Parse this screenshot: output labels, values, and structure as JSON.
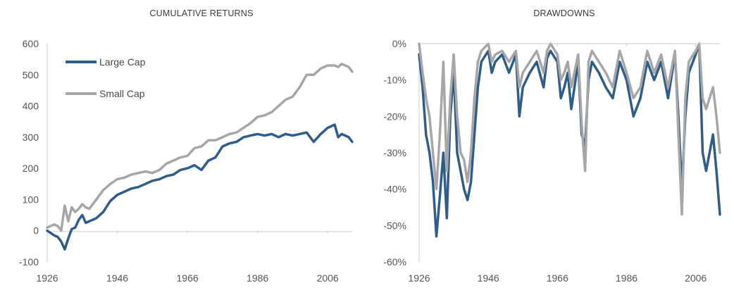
{
  "chart_data": [
    {
      "type": "line",
      "title": "CUMULATIVE RETURNS",
      "xlabel": "",
      "ylabel": "",
      "xlim": [
        1926,
        2013
      ],
      "ylim": [
        -100,
        600
      ],
      "y_ticks": [
        -100,
        0,
        100,
        200,
        300,
        400,
        500,
        600
      ],
      "y_tick_labels": [
        "-100",
        "0",
        "100",
        "200",
        "300",
        "400",
        "500",
        "600"
      ],
      "x_ticks": [
        1926,
        1946,
        1966,
        1986,
        2006
      ],
      "x_tick_labels": [
        "1926",
        "1946",
        "1966",
        "1986",
        "2006"
      ],
      "grid": false,
      "legend_position": "top-left",
      "series": [
        {
          "name": "Large Cap",
          "color": "#2e5d8c",
          "x": [
            1926,
            1928,
            1929,
            1930,
            1931,
            1932,
            1933,
            1934,
            1935,
            1936,
            1937,
            1938,
            1940,
            1942,
            1944,
            1946,
            1948,
            1950,
            1952,
            1954,
            1956,
            1958,
            1960,
            1962,
            1964,
            1966,
            1968,
            1970,
            1972,
            1974,
            1976,
            1978,
            1980,
            1982,
            1984,
            1986,
            1988,
            1990,
            1992,
            1994,
            1996,
            1998,
            2000,
            2002,
            2004,
            2006,
            2008,
            2009,
            2010,
            2012,
            2013
          ],
          "values": [
            0,
            -15,
            -20,
            -35,
            -60,
            -25,
            5,
            10,
            35,
            50,
            25,
            30,
            40,
            60,
            95,
            115,
            125,
            135,
            140,
            150,
            160,
            165,
            175,
            180,
            195,
            200,
            210,
            195,
            225,
            235,
            270,
            280,
            285,
            300,
            305,
            310,
            305,
            310,
            300,
            310,
            305,
            310,
            315,
            285,
            310,
            330,
            340,
            300,
            310,
            300,
            285
          ]
        },
        {
          "name": "Small Cap",
          "color": "#a6a6a6",
          "x": [
            1926,
            1928,
            1929,
            1930,
            1931,
            1932,
            1933,
            1934,
            1935,
            1936,
            1937,
            1938,
            1940,
            1942,
            1944,
            1946,
            1948,
            1950,
            1952,
            1954,
            1956,
            1958,
            1960,
            1962,
            1964,
            1966,
            1968,
            1970,
            1972,
            1974,
            1976,
            1978,
            1980,
            1982,
            1984,
            1986,
            1988,
            1990,
            1992,
            1994,
            1996,
            1998,
            2000,
            2002,
            2004,
            2006,
            2008,
            2009,
            2010,
            2012,
            2013
          ],
          "values": [
            10,
            20,
            15,
            0,
            80,
            30,
            75,
            60,
            70,
            85,
            75,
            70,
            100,
            130,
            150,
            165,
            170,
            180,
            185,
            190,
            185,
            195,
            215,
            225,
            235,
            240,
            265,
            270,
            290,
            290,
            300,
            310,
            315,
            330,
            345,
            365,
            370,
            380,
            400,
            420,
            430,
            460,
            500,
            500,
            520,
            530,
            530,
            525,
            535,
            525,
            510
          ]
        }
      ]
    },
    {
      "type": "line",
      "title": "DRAWDOWNS",
      "xlabel": "",
      "ylabel": "",
      "xlim": [
        1926,
        2013
      ],
      "ylim": [
        -60,
        0
      ],
      "y_ticks": [
        0,
        -10,
        -20,
        -30,
        -40,
        -50,
        -60
      ],
      "y_tick_labels": [
        "0%",
        "-10%",
        "-20%",
        "-30%",
        "-40%",
        "-50%",
        "-60%"
      ],
      "x_ticks": [
        1926,
        1946,
        1966,
        1986,
        2006
      ],
      "x_tick_labels": [
        "1926",
        "1946",
        "1966",
        "1986",
        "2006"
      ],
      "grid": false,
      "series": [
        {
          "name": "Large Cap",
          "color": "#2e5d8c",
          "x": [
            1926,
            1927,
            1928,
            1929,
            1930,
            1931,
            1932,
            1933,
            1934,
            1935,
            1936,
            1937,
            1938,
            1939,
            1940,
            1941,
            1942,
            1943,
            1944,
            1946,
            1947,
            1948,
            1950,
            1952,
            1954,
            1955,
            1956,
            1958,
            1960,
            1962,
            1963,
            1964,
            1966,
            1967,
            1968,
            1969,
            1970,
            1972,
            1973,
            1974,
            1975,
            1976,
            1978,
            1980,
            1982,
            1984,
            1986,
            1988,
            1990,
            1992,
            1994,
            1996,
            1998,
            2000,
            2001,
            2002,
            2003,
            2004,
            2006,
            2007,
            2008,
            2009,
            2010,
            2011,
            2012,
            2013
          ],
          "values": [
            -3,
            -12,
            -25,
            -30,
            -38,
            -53,
            -42,
            -30,
            -48,
            -20,
            -8,
            -30,
            -35,
            -40,
            -43,
            -38,
            -25,
            -12,
            -5,
            -2,
            -8,
            -5,
            -3,
            -8,
            -3,
            -20,
            -12,
            -8,
            -5,
            -12,
            -4,
            -2,
            -5,
            -15,
            -12,
            -8,
            -18,
            -5,
            -25,
            -28,
            -10,
            -5,
            -8,
            -12,
            -15,
            -5,
            -10,
            -20,
            -15,
            -5,
            -10,
            -5,
            -15,
            -3,
            -20,
            -40,
            -20,
            -8,
            -3,
            0,
            -30,
            -35,
            -30,
            -25,
            -35,
            -47
          ]
        },
        {
          "name": "Small Cap",
          "color": "#a6a6a6",
          "x": [
            1926,
            1927,
            1928,
            1929,
            1930,
            1931,
            1932,
            1933,
            1934,
            1935,
            1936,
            1937,
            1938,
            1939,
            1940,
            1941,
            1942,
            1943,
            1944,
            1946,
            1947,
            1948,
            1950,
            1952,
            1954,
            1955,
            1956,
            1958,
            1960,
            1962,
            1963,
            1964,
            1966,
            1967,
            1968,
            1969,
            1970,
            1972,
            1973,
            1974,
            1975,
            1976,
            1978,
            1980,
            1982,
            1984,
            1986,
            1988,
            1990,
            1992,
            1994,
            1996,
            1998,
            2000,
            2001,
            2002,
            2003,
            2004,
            2006,
            2007,
            2008,
            2009,
            2010,
            2011,
            2012,
            2013
          ],
          "values": [
            0,
            -8,
            -15,
            -20,
            -30,
            -40,
            -25,
            -5,
            -35,
            -15,
            -3,
            -20,
            -30,
            -32,
            -38,
            -30,
            -15,
            -5,
            -2,
            0,
            -5,
            -3,
            -2,
            -5,
            -2,
            -12,
            -8,
            -5,
            -2,
            -8,
            -2,
            0,
            -3,
            -10,
            -8,
            -5,
            -12,
            -3,
            -22,
            -35,
            -5,
            -2,
            -5,
            -8,
            -12,
            -2,
            -8,
            -15,
            -12,
            -2,
            -8,
            -3,
            -12,
            -2,
            -25,
            -47,
            -15,
            -5,
            -2,
            0,
            -15,
            -18,
            -15,
            -12,
            -20,
            -30
          ]
        }
      ]
    }
  ]
}
